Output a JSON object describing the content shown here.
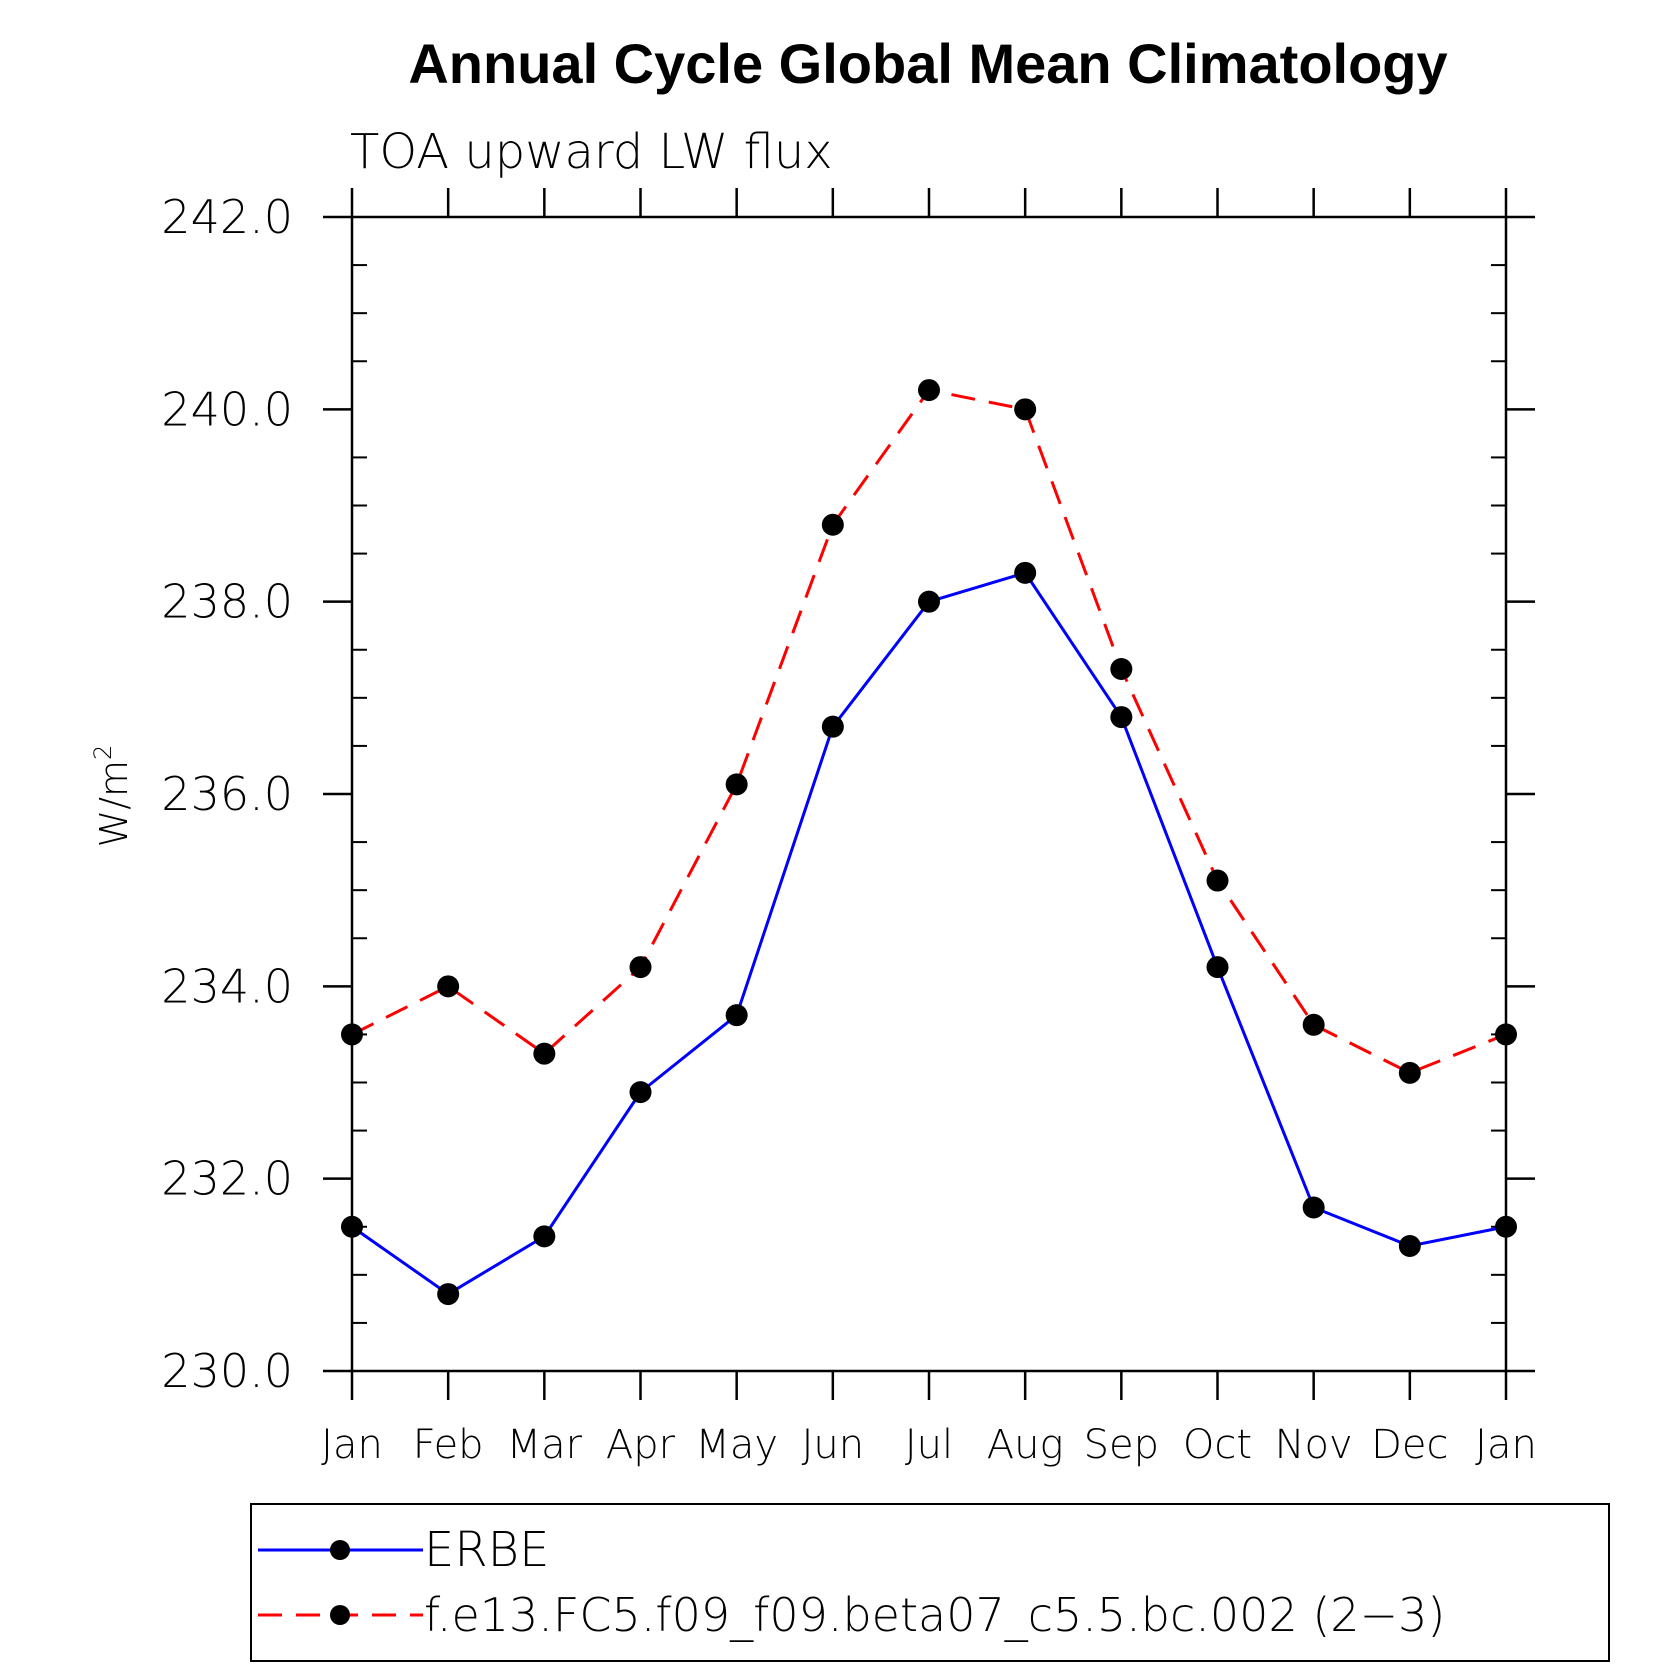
{
  "chart_data": {
    "type": "line",
    "title": "Annual Cycle Global Mean Climatology",
    "subtitle": "TOA upward LW flux",
    "ylabel": "W/m",
    "ylabel_superscript": "2",
    "xlabel": "",
    "ylim": [
      230.0,
      242.0
    ],
    "yticks": [
      "230.0",
      "232.0",
      "234.0",
      "236.0",
      "238.0",
      "240.0",
      "242.0"
    ],
    "categories": [
      "Jan",
      "Feb",
      "Mar",
      "Apr",
      "May",
      "Jun",
      "Jul",
      "Aug",
      "Sep",
      "Oct",
      "Nov",
      "Dec",
      "Jan"
    ],
    "legend_position": "bottom",
    "series": [
      {
        "name": "ERBE",
        "color": "#0000ff",
        "dash": "solid",
        "marker": "filled-circle",
        "values": [
          231.5,
          230.8,
          231.4,
          232.9,
          233.7,
          236.7,
          238.0,
          238.3,
          236.8,
          234.2,
          231.7,
          231.3,
          231.5
        ]
      },
      {
        "name": "f.e13.FC5.f09_f09.beta07_c5.5.bc.002 (2−3)",
        "color": "#ff0000",
        "dash": "dashed",
        "marker": "filled-circle",
        "values": [
          233.5,
          234.0,
          233.3,
          234.2,
          236.1,
          238.8,
          240.2,
          240.0,
          237.3,
          235.1,
          233.6,
          233.1,
          233.5
        ]
      }
    ]
  }
}
